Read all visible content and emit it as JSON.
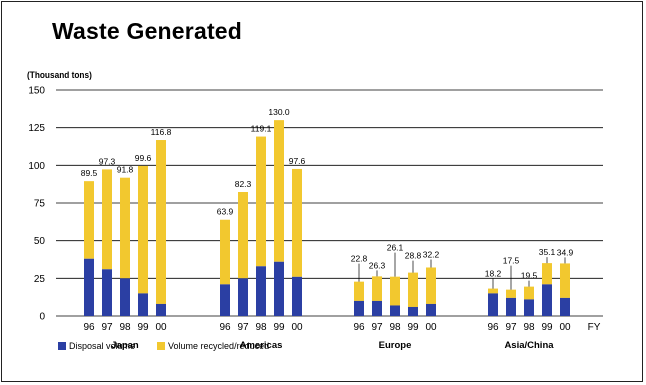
{
  "title": "Waste Generated",
  "unit_label": "(Thousand tons)",
  "colors": {
    "disposal": "#2b3fa3",
    "recycled": "#f2c82f",
    "grid": "#000000"
  },
  "chart_data": {
    "type": "bar",
    "stacked": true,
    "title": "Waste Generated",
    "ylabel": "(Thousand tons)",
    "xlabel": "FY",
    "ylim": [
      0,
      150
    ],
    "yticks": [
      0,
      25,
      50,
      75,
      100,
      125,
      150
    ],
    "grid": true,
    "legend_position": "bottom-left",
    "groups": [
      {
        "name": "Japan",
        "years": [
          "96",
          "97",
          "98",
          "99",
          "00"
        ],
        "totals": [
          89.5,
          97.3,
          91.8,
          99.6,
          116.8
        ],
        "disposal": [
          38,
          31,
          25,
          15,
          8
        ],
        "recycled": [
          51.5,
          66.3,
          66.8,
          84.6,
          108.8
        ]
      },
      {
        "name": "Americas",
        "years": [
          "96",
          "97",
          "98",
          "99",
          "00"
        ],
        "totals": [
          63.9,
          82.3,
          119.1,
          130.0,
          97.6
        ],
        "disposal": [
          21,
          25,
          33,
          36,
          26
        ],
        "recycled": [
          42.9,
          57.3,
          86.1,
          94.0,
          71.6
        ]
      },
      {
        "name": "Europe",
        "years": [
          "96",
          "97",
          "98",
          "99",
          "00"
        ],
        "totals": [
          22.8,
          26.3,
          26.1,
          28.8,
          32.2
        ],
        "disposal": [
          10,
          10,
          7,
          6,
          8
        ],
        "recycled": [
          12.8,
          16.3,
          19.1,
          22.8,
          24.2
        ]
      },
      {
        "name": "Asia/China",
        "years": [
          "96",
          "97",
          "98",
          "99",
          "00"
        ],
        "totals": [
          18.2,
          17.5,
          19.5,
          35.1,
          34.9
        ],
        "disposal": [
          15,
          12,
          11,
          21,
          12
        ],
        "recycled": [
          3.2,
          5.5,
          8.5,
          14.1,
          22.9
        ]
      }
    ],
    "value_labels": [
      [
        "89.5",
        "97.3",
        "91.8",
        "99.6",
        "116.8"
      ],
      [
        "63.9",
        "82.3",
        "119.1",
        "130.0",
        "97.6"
      ],
      [
        "22.8",
        "26.3",
        "26.1",
        "28.8",
        "32.2"
      ],
      [
        "18.2",
        "17.5",
        "19.5",
        "35.1",
        "34.9"
      ]
    ],
    "series": [
      {
        "name": "Disposal volume",
        "key": "disposal"
      },
      {
        "name": "Volume recycled/reduced",
        "key": "recycled"
      }
    ]
  },
  "legend": {
    "disposal": "Disposal volume",
    "recycled": "Volume recycled/reduced"
  }
}
